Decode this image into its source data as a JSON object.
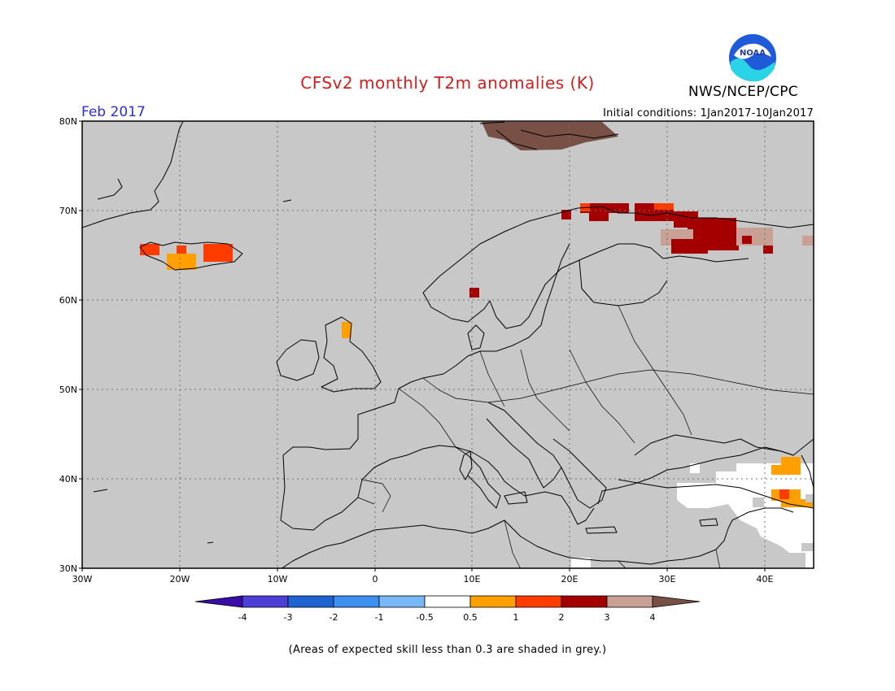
{
  "header": {
    "title": "CFSv2 monthly T2m anomalies (K)",
    "agency": "NWS/NCEP/CPC",
    "logo_text": "NOAA",
    "month": "Feb 2017",
    "initial_conditions": "Initial conditions: 1Jan2017-10Jan2017"
  },
  "map": {
    "lat_labels": [
      "80N",
      "70N",
      "60N",
      "50N",
      "40N",
      "30N"
    ],
    "lon_labels": [
      "30W",
      "20W",
      "10W",
      "0",
      "10E",
      "20E",
      "30E",
      "40E"
    ],
    "background_color": "#c8c8c8"
  },
  "legend": {
    "tick_labels": [
      "-4",
      "-3",
      "-2",
      "-1",
      "-0.5",
      "0.5",
      "1",
      "2",
      "3",
      "4"
    ],
    "colors": [
      "#3b0da8",
      "#4c3ed6",
      "#1f62d2",
      "#3d8ff0",
      "#79b8f7",
      "#ffffff",
      "#ffa000",
      "#ff3c00",
      "#a50000",
      "#c8a096",
      "#785046"
    ]
  },
  "footer": {
    "note": "(Areas of expected skill less than 0.3 are shaded in grey.)"
  }
}
